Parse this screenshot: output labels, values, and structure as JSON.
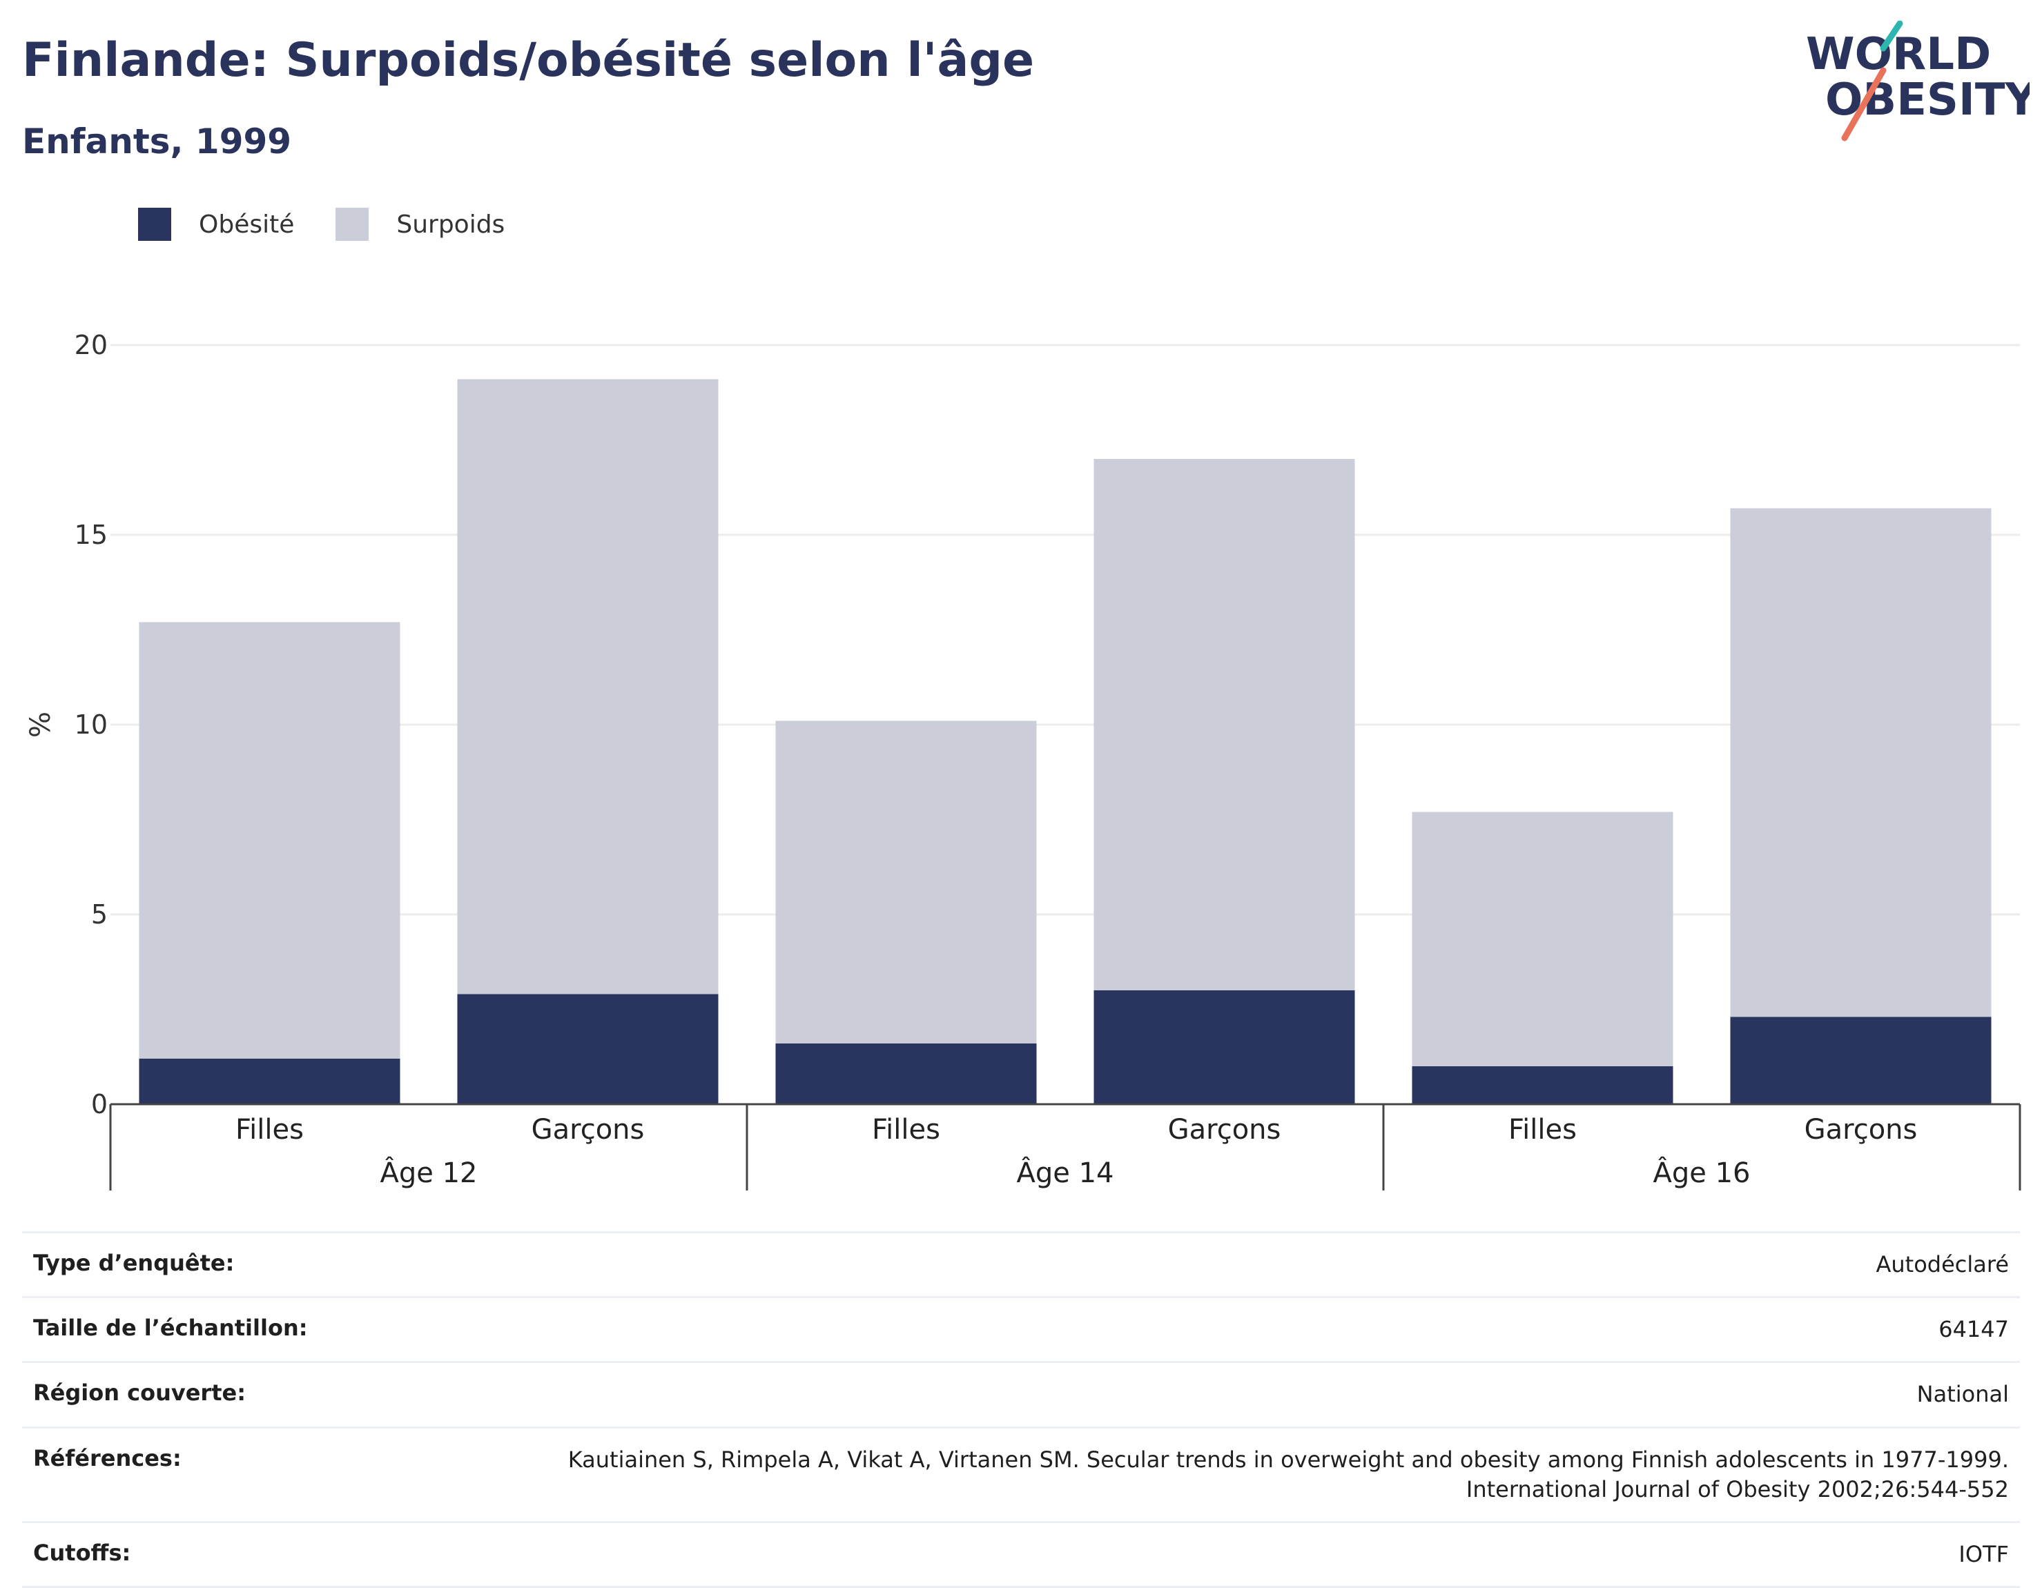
{
  "header": {
    "title": "Finlande: Surpoids/obésité selon l'âge",
    "subtitle": "Enfants, 1999"
  },
  "logo": {
    "line1": "WORLD",
    "line2": "OBESITY",
    "text_color": "#29335c",
    "slash_colors": [
      "#2db6b0",
      "#e8735a"
    ]
  },
  "legend": {
    "items": [
      {
        "label": "Obésité",
        "color": "#29355f"
      },
      {
        "label": "Surpoids",
        "color": "#cbcdd9"
      }
    ]
  },
  "chart_data": {
    "type": "bar",
    "stacked": true,
    "categories": [
      "Filles",
      "Garçons",
      "Filles",
      "Garçons",
      "Filles",
      "Garçons"
    ],
    "groups": [
      {
        "label": "Âge 12",
        "categories": [
          "Filles",
          "Garçons"
        ]
      },
      {
        "label": "Âge 14",
        "categories": [
          "Filles",
          "Garçons"
        ]
      },
      {
        "label": "Âge 16",
        "categories": [
          "Filles",
          "Garçons"
        ]
      }
    ],
    "series": [
      {
        "name": "Obésité",
        "color": "#29355f",
        "values": [
          1.2,
          2.9,
          1.6,
          3.0,
          1.0,
          2.3
        ]
      },
      {
        "name": "Surpoids",
        "color": "#cbcdd9",
        "values": [
          11.5,
          16.2,
          8.5,
          14.0,
          6.7,
          13.4
        ]
      }
    ],
    "ylabel": "%",
    "ylim": [
      0,
      20
    ],
    "yticks": [
      0,
      5,
      10,
      15,
      20
    ],
    "grid": true,
    "legend_position": "top-left"
  },
  "info": {
    "rows": [
      {
        "label": "Type d’enquête:",
        "value": "Autodéclaré"
      },
      {
        "label": "Taille de l’échantillon:",
        "value": "64147"
      },
      {
        "label": "Région couverte:",
        "value": "National"
      },
      {
        "label": "Références:",
        "value": "Kautiainen S, Rimpela A, Vikat A, Virtanen SM. Secular trends in overweight and obesity among Finnish adolescents in 1977-1999.",
        "value2": "International Journal of Obesity 2002;26:544-552"
      },
      {
        "label": "Cutoffs:",
        "value": "IOTF"
      }
    ]
  }
}
